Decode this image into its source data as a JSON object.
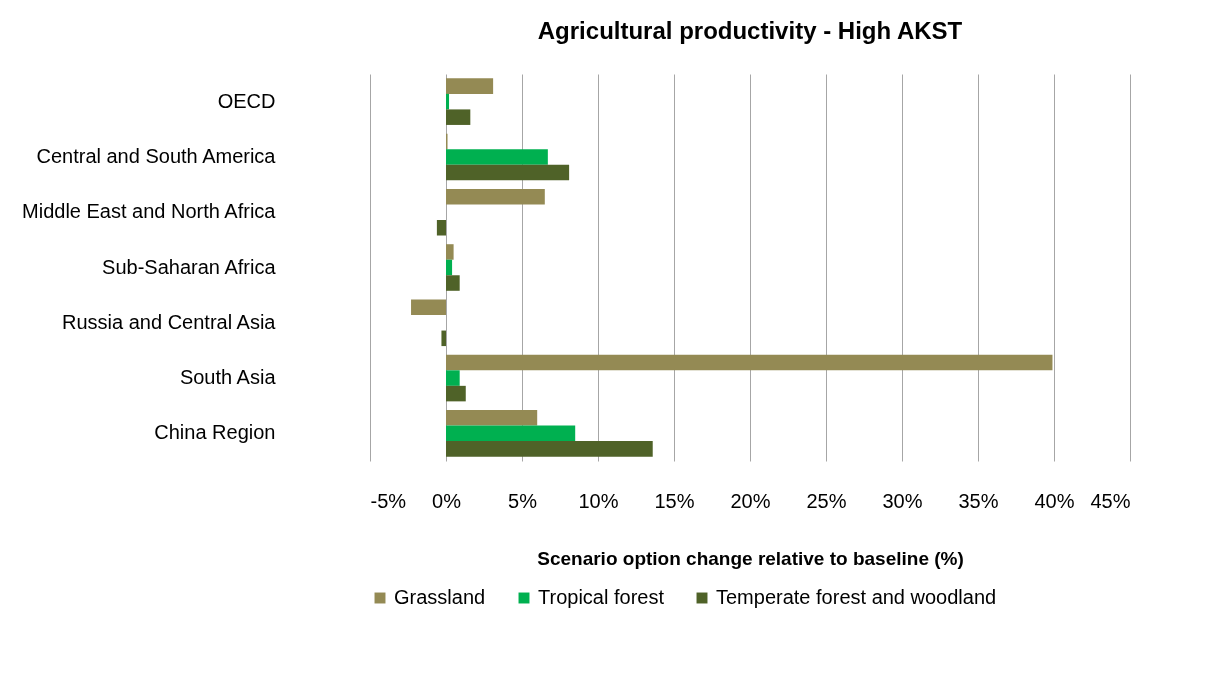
{
  "chart_data": {
    "type": "bar",
    "orientation": "horizontal",
    "title": "Agricultural productivity - High AKST",
    "xlabel": "Scenario option change relative to baseline (%)",
    "categories": [
      "OECD",
      "Central and South America",
      "Middle East and North Africa",
      "Sub-Saharan Africa",
      "Russia and Central Asia",
      "South Asia",
      "China Region"
    ],
    "series": [
      {
        "name": "Grassland",
        "color": "#948a54",
        "values": [
          3.1,
          0.1,
          6.5,
          0.5,
          -2.3,
          39.9,
          6.0
        ]
      },
      {
        "name": "Tropical forest",
        "color": "#00b050",
        "values": [
          0.2,
          6.7,
          0,
          0.4,
          0,
          0.9,
          8.5
        ]
      },
      {
        "name": "Temperate forest and woodland",
        "color": "#4f6228",
        "values": [
          1.6,
          8.1,
          -0.6,
          0.9,
          -0.3,
          1.3,
          13.6
        ]
      }
    ],
    "xlim": [
      -5,
      45
    ],
    "xticks": [
      {
        "value": -5,
        "label": "-5%"
      },
      {
        "value": 0,
        "label": "0%"
      },
      {
        "value": 5,
        "label": "5%"
      },
      {
        "value": 10,
        "label": "10%"
      },
      {
        "value": 15,
        "label": "15%"
      },
      {
        "value": 20,
        "label": "20%"
      },
      {
        "value": 25,
        "label": "25%"
      },
      {
        "value": 30,
        "label": "30%"
      },
      {
        "value": 35,
        "label": "35%"
      },
      {
        "value": 40,
        "label": "40%"
      },
      {
        "value": 45,
        "label": "45%"
      }
    ],
    "grid": "x",
    "legend": "bottom"
  }
}
